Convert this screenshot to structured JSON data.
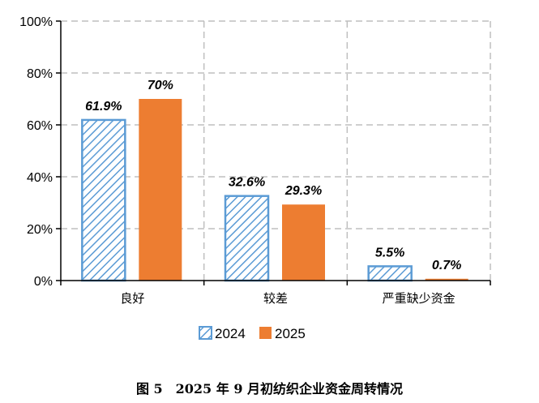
{
  "caption": "图 5　2025 年 9 月初纺织企业资金周转情况",
  "chart_data": {
    "type": "bar",
    "categories": [
      "良好",
      "较差",
      "严重缺少资金"
    ],
    "series": [
      {
        "name": "2024",
        "values": [
          61.9,
          32.6,
          5.5
        ],
        "labels": [
          "61.9%",
          "32.6%",
          "5.5%"
        ],
        "color": "#5b9bd5",
        "pattern": "diagonal-hatch"
      },
      {
        "name": "2025",
        "values": [
          70,
          29.3,
          0.7
        ],
        "labels": [
          "70%",
          "29.3%",
          "0.7%"
        ],
        "color": "#ed7d31",
        "pattern": "solid"
      }
    ],
    "yticks": [
      {
        "value": 0,
        "label": "0%"
      },
      {
        "value": 20,
        "label": "20%"
      },
      {
        "value": 40,
        "label": "40%"
      },
      {
        "value": 60,
        "label": "60%"
      },
      {
        "value": 80,
        "label": "80%"
      },
      {
        "value": 100,
        "label": "100%"
      }
    ],
    "ylim": [
      0,
      100
    ],
    "grid": true,
    "legend_position": "bottom"
  }
}
